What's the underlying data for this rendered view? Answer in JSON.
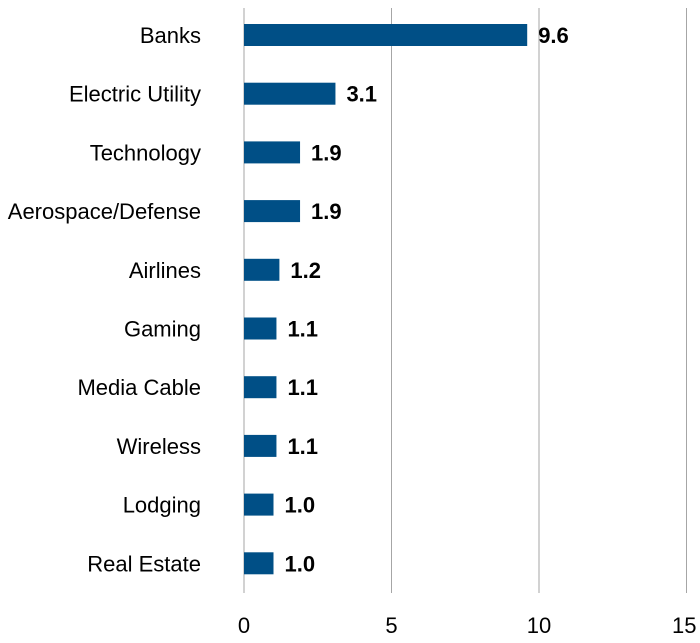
{
  "chart_data": {
    "type": "bar",
    "orientation": "horizontal",
    "categories": [
      "Banks",
      "Electric Utility",
      "Technology",
      "Aerospace/Defense",
      "Airlines",
      "Gaming",
      "Media Cable",
      "Wireless",
      "Lodging",
      "Real Estate"
    ],
    "values": [
      9.6,
      3.1,
      1.9,
      1.9,
      1.2,
      1.1,
      1.1,
      1.1,
      1.0,
      1.0
    ],
    "value_labels": [
      "9.6",
      "3.1",
      "1.9",
      "1.9",
      "1.2",
      "1.1",
      "1.1",
      "1.1",
      "1.0",
      "1.0"
    ],
    "title": "",
    "xlabel": "",
    "ylabel": "",
    "xlim": [
      0,
      15
    ],
    "x_ticks": [
      0,
      5,
      10,
      15
    ],
    "x_tick_labels": [
      "0",
      "5",
      "10",
      "15"
    ],
    "grid": "vertical",
    "legend": "none",
    "bar_color": "#004F86",
    "grid_color": "#A6A6A6"
  }
}
